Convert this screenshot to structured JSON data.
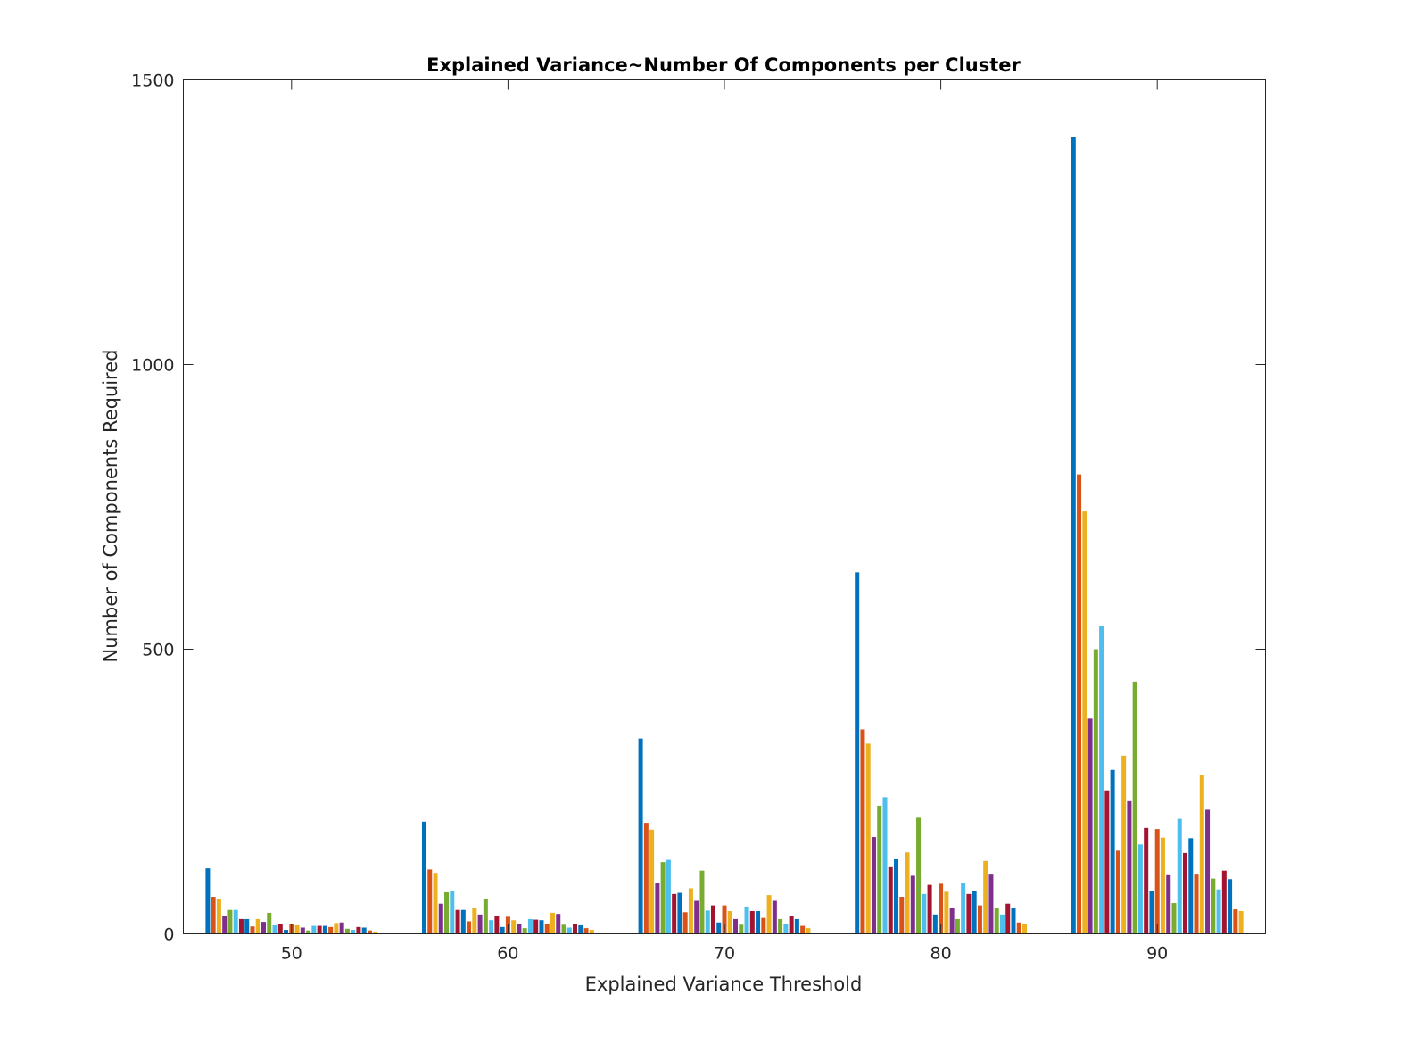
{
  "chart_data": {
    "type": "bar",
    "title": "Explained Variance~Number Of Components per Cluster",
    "xlabel": "Explained Variance Threshold",
    "ylabel": "Number of Components Required",
    "categories": [
      "50",
      "60",
      "70",
      "80",
      "90"
    ],
    "ylim": [
      0,
      1500
    ],
    "yticks": [
      "0",
      "500",
      "1000",
      "1500"
    ],
    "grid": false,
    "legend": "none",
    "palette": [
      "#0072BD",
      "#D95319",
      "#EDB120",
      "#7E2F8E",
      "#77AC30",
      "#4DBEEE",
      "#A2142F"
    ],
    "series_values": [
      [
        115,
        197,
        343,
        635,
        1400
      ],
      [
        65,
        113,
        195,
        359,
        807
      ],
      [
        62,
        107,
        183,
        334,
        742
      ],
      [
        31,
        53,
        90,
        170,
        378
      ],
      [
        42,
        73,
        126,
        225,
        500
      ],
      [
        42,
        75,
        130,
        240,
        540
      ],
      [
        26,
        42,
        70,
        117,
        252
      ],
      [
        26,
        42,
        72,
        131,
        288
      ],
      [
        13,
        22,
        38,
        65,
        146
      ],
      [
        26,
        46,
        80,
        143,
        313
      ],
      [
        21,
        34,
        58,
        102,
        233
      ],
      [
        37,
        62,
        111,
        204,
        443
      ],
      [
        15,
        24,
        41,
        70,
        157
      ],
      [
        18,
        31,
        50,
        86,
        186
      ],
      [
        7,
        12,
        20,
        34,
        75
      ],
      [
        18,
        30,
        50,
        88,
        184
      ],
      [
        15,
        24,
        40,
        74,
        169
      ],
      [
        11,
        18,
        26,
        45,
        103
      ],
      [
        6,
        10,
        16,
        26,
        54
      ],
      [
        14,
        26,
        48,
        89,
        202
      ],
      [
        14,
        25,
        40,
        70,
        142
      ],
      [
        14,
        24,
        40,
        76,
        168
      ],
      [
        12,
        18,
        28,
        50,
        104
      ],
      [
        19,
        37,
        68,
        128,
        279
      ],
      [
        20,
        35,
        58,
        104,
        218
      ],
      [
        9,
        16,
        26,
        46,
        97
      ],
      [
        7,
        11,
        18,
        34,
        78
      ],
      [
        12,
        18,
        32,
        53,
        111
      ],
      [
        11,
        15,
        26,
        46,
        96
      ],
      [
        6,
        10,
        14,
        20,
        43
      ],
      [
        4,
        7,
        10,
        17,
        40
      ]
    ]
  }
}
